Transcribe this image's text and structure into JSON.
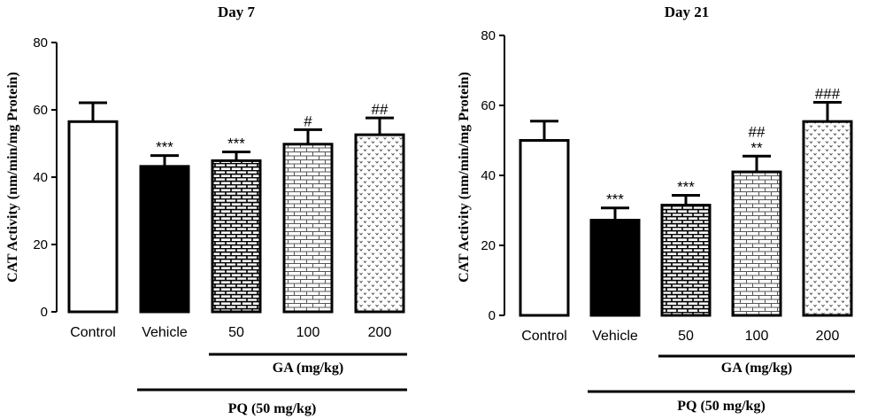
{
  "chart_data": [
    {
      "type": "bar",
      "title": "Day 7",
      "ylabel": "CAT Activity (nm/min/mg Protein)",
      "ylim": [
        0,
        80
      ],
      "yticks": [
        0,
        20,
        40,
        60,
        80
      ],
      "categories": [
        "Control",
        "Vehicle",
        "50",
        "100",
        "200"
      ],
      "values": [
        56.5,
        43.2,
        44.9,
        49.8,
        52.6
      ],
      "errors": [
        5.6,
        3.2,
        2.6,
        4.3,
        5.0
      ],
      "annotations": [
        [
          "",
          ""
        ],
        [
          "***",
          ""
        ],
        [
          "***",
          ""
        ],
        [
          "#",
          ""
        ],
        [
          "##",
          ""
        ]
      ],
      "patterns": [
        "empty",
        "solid",
        "brick-dense",
        "brick",
        "dots"
      ],
      "groups": [
        {
          "label": "GA (mg/kg)",
          "from": 2,
          "to": 4
        },
        {
          "label": "PQ (50 mg/kg)",
          "from": 1,
          "to": 4
        }
      ]
    },
    {
      "type": "bar",
      "title": "Day 21",
      "ylabel": "CAT Activity (nm/min/mg Protein)",
      "ylim": [
        0,
        80
      ],
      "yticks": [
        0,
        20,
        40,
        60,
        80
      ],
      "categories": [
        "Control",
        "Vehicle",
        "50",
        "100",
        "200"
      ],
      "values": [
        50.0,
        27.2,
        31.5,
        41.0,
        55.4
      ],
      "errors": [
        5.5,
        3.5,
        2.8,
        4.5,
        5.5
      ],
      "annotations": [
        [
          "",
          ""
        ],
        [
          "***",
          ""
        ],
        [
          "***",
          ""
        ],
        [
          "**",
          "##"
        ],
        [
          "###",
          ""
        ]
      ],
      "patterns": [
        "empty",
        "solid",
        "brick-dense",
        "brick",
        "dots"
      ],
      "groups": [
        {
          "label": "GA (mg/kg)",
          "from": 2,
          "to": 4
        },
        {
          "label": "PQ (50 mg/kg)",
          "from": 1,
          "to": 4
        }
      ]
    }
  ]
}
